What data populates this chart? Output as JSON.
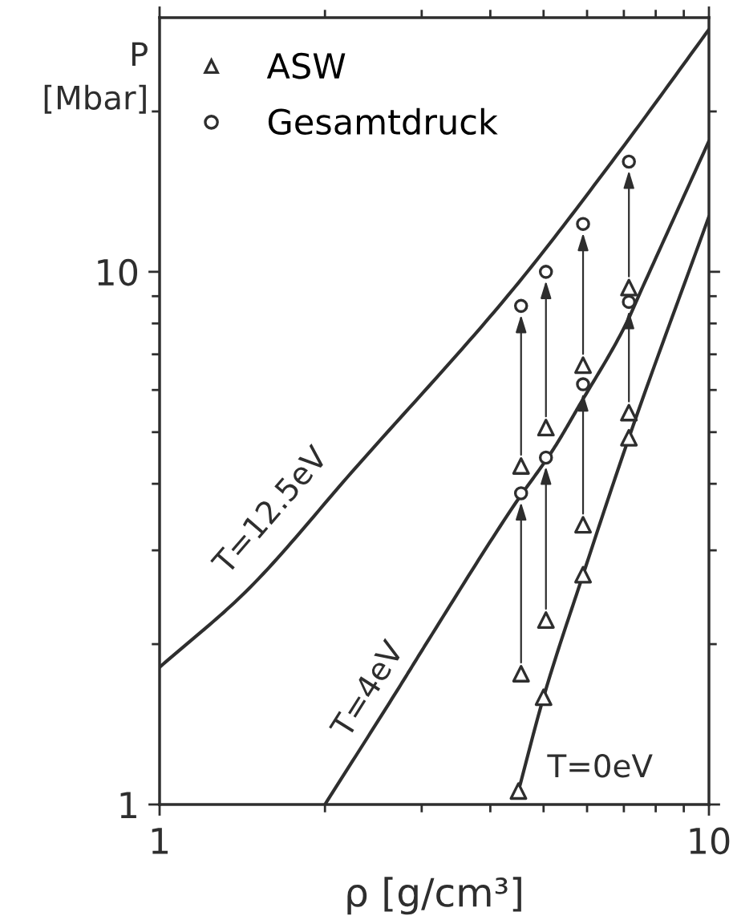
{
  "chart_data": {
    "type": "line",
    "xlabel": "ρ [g/cm³]",
    "ylabel": "P [Mbar]",
    "log": "xy",
    "xlim": [
      1,
      10
    ],
    "ylim": [
      1,
      30
    ],
    "xticks": [
      1,
      {
        "value": 2,
        "label": null
      },
      {
        "value": 3,
        "label": null
      },
      {
        "value": 4,
        "label": null
      },
      {
        "value": 5,
        "label": null
      },
      {
        "value": 6,
        "label": null
      },
      {
        "value": 7,
        "label": null
      },
      {
        "value": 8,
        "label": null
      },
      {
        "value": 9,
        "label": null
      },
      10
    ],
    "yticks": [
      1,
      {
        "value": 2,
        "label": null
      },
      {
        "value": 3,
        "label": null
      },
      {
        "value": 4,
        "label": null
      },
      {
        "value": 5,
        "label": null
      },
      {
        "value": 6,
        "label": null
      },
      {
        "value": 7,
        "label": null
      },
      {
        "value": 8,
        "label": null
      },
      {
        "value": 9,
        "label": null
      },
      10,
      {
        "value": 20,
        "label": null
      }
    ],
    "legend": "top left",
    "series": [
      {
        "name": "T=12.5eV",
        "color": "#2e2e2e",
        "x": [
          1,
          1.43,
          2.28,
          4.43,
          6.9,
          10
        ],
        "values": [
          1.81,
          2.5,
          4.3,
          9.35,
          16.9,
          28.5
        ]
      },
      {
        "name": "T=4eV",
        "color": "#2e2e2e",
        "x": [
          2,
          2.72,
          3.09,
          4.43,
          5.22,
          5.83,
          7.05,
          7.57,
          10
        ],
        "values": [
          1.0,
          1.65,
          2.04,
          3.66,
          4.66,
          5.65,
          7.95,
          9.35,
          17.6
        ]
      },
      {
        "name": "T=0eV",
        "color": "#2e2e2e",
        "x": [
          4.5,
          5.0,
          5.9,
          7.15,
          10
        ],
        "values": [
          1.06,
          1.59,
          2.7,
          4.88,
          12.7
        ]
      },
      {
        "type": "scatter",
        "name": "ASW",
        "marker": "triangle",
        "color": "#2e2e2e",
        "x": [
          4.5,
          4.55,
          4.55,
          5.0,
          5.05,
          5.05,
          5.9,
          5.9,
          5.9,
          7.15,
          7.15,
          7.15
        ],
        "values": [
          1.06,
          1.76,
          4.32,
          1.59,
          2.22,
          5.1,
          2.7,
          3.35,
          6.68,
          4.88,
          5.44,
          9.34
        ]
      },
      {
        "type": "scatter",
        "name": "Gesamtdruck",
        "marker": "circle",
        "color": "#2e2e2e",
        "x": [
          4.55,
          4.55,
          5.05,
          5.05,
          5.9,
          5.9,
          7.15,
          7.15
        ],
        "values": [
          3.84,
          8.63,
          4.48,
          10.0,
          6.15,
          12.3,
          8.78,
          16.1
        ]
      }
    ]
  }
}
